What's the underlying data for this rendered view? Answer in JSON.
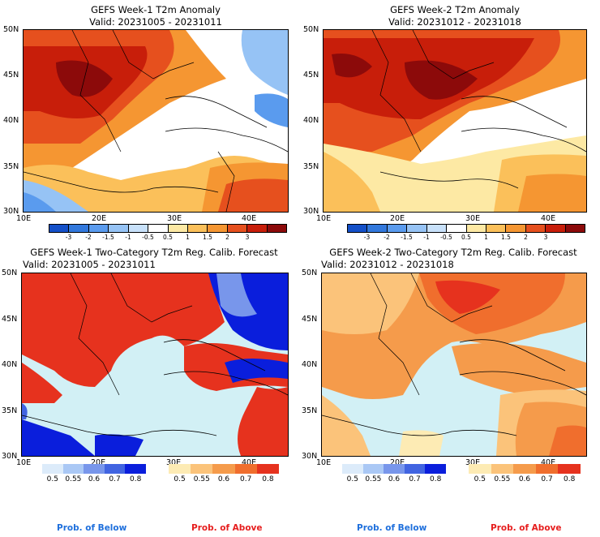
{
  "panels": [
    {
      "title": "GEFS Week-1 T2m Anomaly",
      "valid": "Valid: 20231005 - 20231011"
    },
    {
      "title": "GEFS Week-2 T2m Anomaly",
      "valid": "Valid: 20231012 - 20231018"
    },
    {
      "title": "GEFS Week-1 Two-Category T2m Reg. Calib. Forecast",
      "valid": "Valid: 20231005 - 20231011"
    },
    {
      "title": "GEFS Week-2 Two-Category T2m Reg. Calib. Forecast",
      "valid": "Valid: 20231012 - 20231018"
    }
  ],
  "lat_labels": [
    "50N",
    "45N",
    "40N",
    "35N",
    "30N"
  ],
  "lon_labels": [
    "10E",
    "20E",
    "30E",
    "40E"
  ],
  "anomaly_scale": {
    "labels": [
      "-3",
      "-2",
      "-1.5",
      "-1",
      "-0.5",
      "0.5",
      "1",
      "1.5",
      "2",
      "3"
    ],
    "colors": [
      "#1450c8",
      "#3278dc",
      "#5a9bee",
      "#96c3f5",
      "#c8e1fa",
      "#ffffff",
      "#fde9a4",
      "#fbc05a",
      "#f59632",
      "#e6501e",
      "#c81e0a",
      "#8c0a0a"
    ]
  },
  "prob_below": {
    "labels": [
      "0.5",
      "0.55",
      "0.6",
      "0.7",
      "0.8"
    ],
    "colors": [
      "#dcebfa",
      "#aac8f5",
      "#7896eb",
      "#4164e1",
      "#0a1edc"
    ]
  },
  "prob_above": {
    "labels": [
      "0.5",
      "0.55",
      "0.6",
      "0.7",
      "0.8"
    ],
    "colors": [
      "#fdebb4",
      "#fbc37a",
      "#f59b4b",
      "#f06e2d",
      "#e6321e"
    ]
  },
  "legend": {
    "below": "Prob. of Below",
    "above": "Prob. of Above",
    "below_color": "#1e6fdc",
    "above_color": "#e61e1e"
  }
}
